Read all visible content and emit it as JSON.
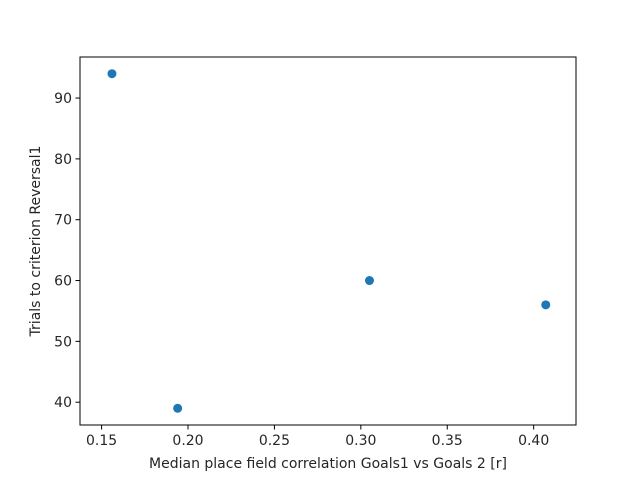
{
  "chart_data": {
    "type": "scatter",
    "title": "",
    "xlabel": "Median place field correlation Goals1 vs Goals 2 [r]",
    "ylabel": "Trials to criterion Reversal1",
    "xlim": [
      0.1375,
      0.4245
    ],
    "ylim": [
      36.25,
      96.75
    ],
    "x_ticks": [
      0.15,
      0.2,
      0.25,
      0.3,
      0.35,
      0.4
    ],
    "x_tick_labels": [
      "0.15",
      "0.20",
      "0.25",
      "0.30",
      "0.35",
      "0.40"
    ],
    "y_ticks": [
      40,
      50,
      60,
      70,
      80,
      90
    ],
    "y_tick_labels": [
      "40",
      "50",
      "60",
      "70",
      "80",
      "90"
    ],
    "grid": false,
    "legend": "none",
    "series": [
      {
        "color": "#1f77b4",
        "points": [
          {
            "x": 0.156,
            "y": 94
          },
          {
            "x": 0.194,
            "y": 39
          },
          {
            "x": 0.305,
            "y": 60
          },
          {
            "x": 0.407,
            "y": 56
          }
        ]
      }
    ]
  }
}
